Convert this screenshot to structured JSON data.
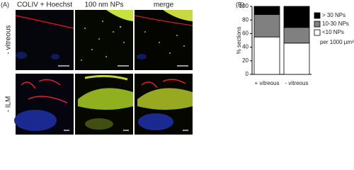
{
  "panel_a": {
    "label": "(A)",
    "columns": [
      "COLIV + Hoechst",
      "100 nm NPs",
      "merge"
    ],
    "rows": [
      "- vitreous",
      "- ILM"
    ]
  },
  "chart_data": {
    "type": "stacked_bar",
    "panel_label": "(B)",
    "y_label": "% sections",
    "categories": [
      "+ vitreous",
      "- vitreous"
    ],
    "series": [
      {
        "name": "<10 NPs",
        "color": "#ffffff",
        "values": [
          55,
          46
        ]
      },
      {
        "name": "10-30 NPs",
        "color": "#808080",
        "values": [
          33,
          23
        ]
      },
      {
        "name": "> 30 NPs",
        "color": "#000000",
        "values": [
          12,
          31
        ]
      }
    ],
    "ylim": [
      0,
      100
    ],
    "yticks": [
      0,
      20,
      40,
      60,
      80,
      100
    ],
    "annotation": "per 1000 µm²"
  }
}
